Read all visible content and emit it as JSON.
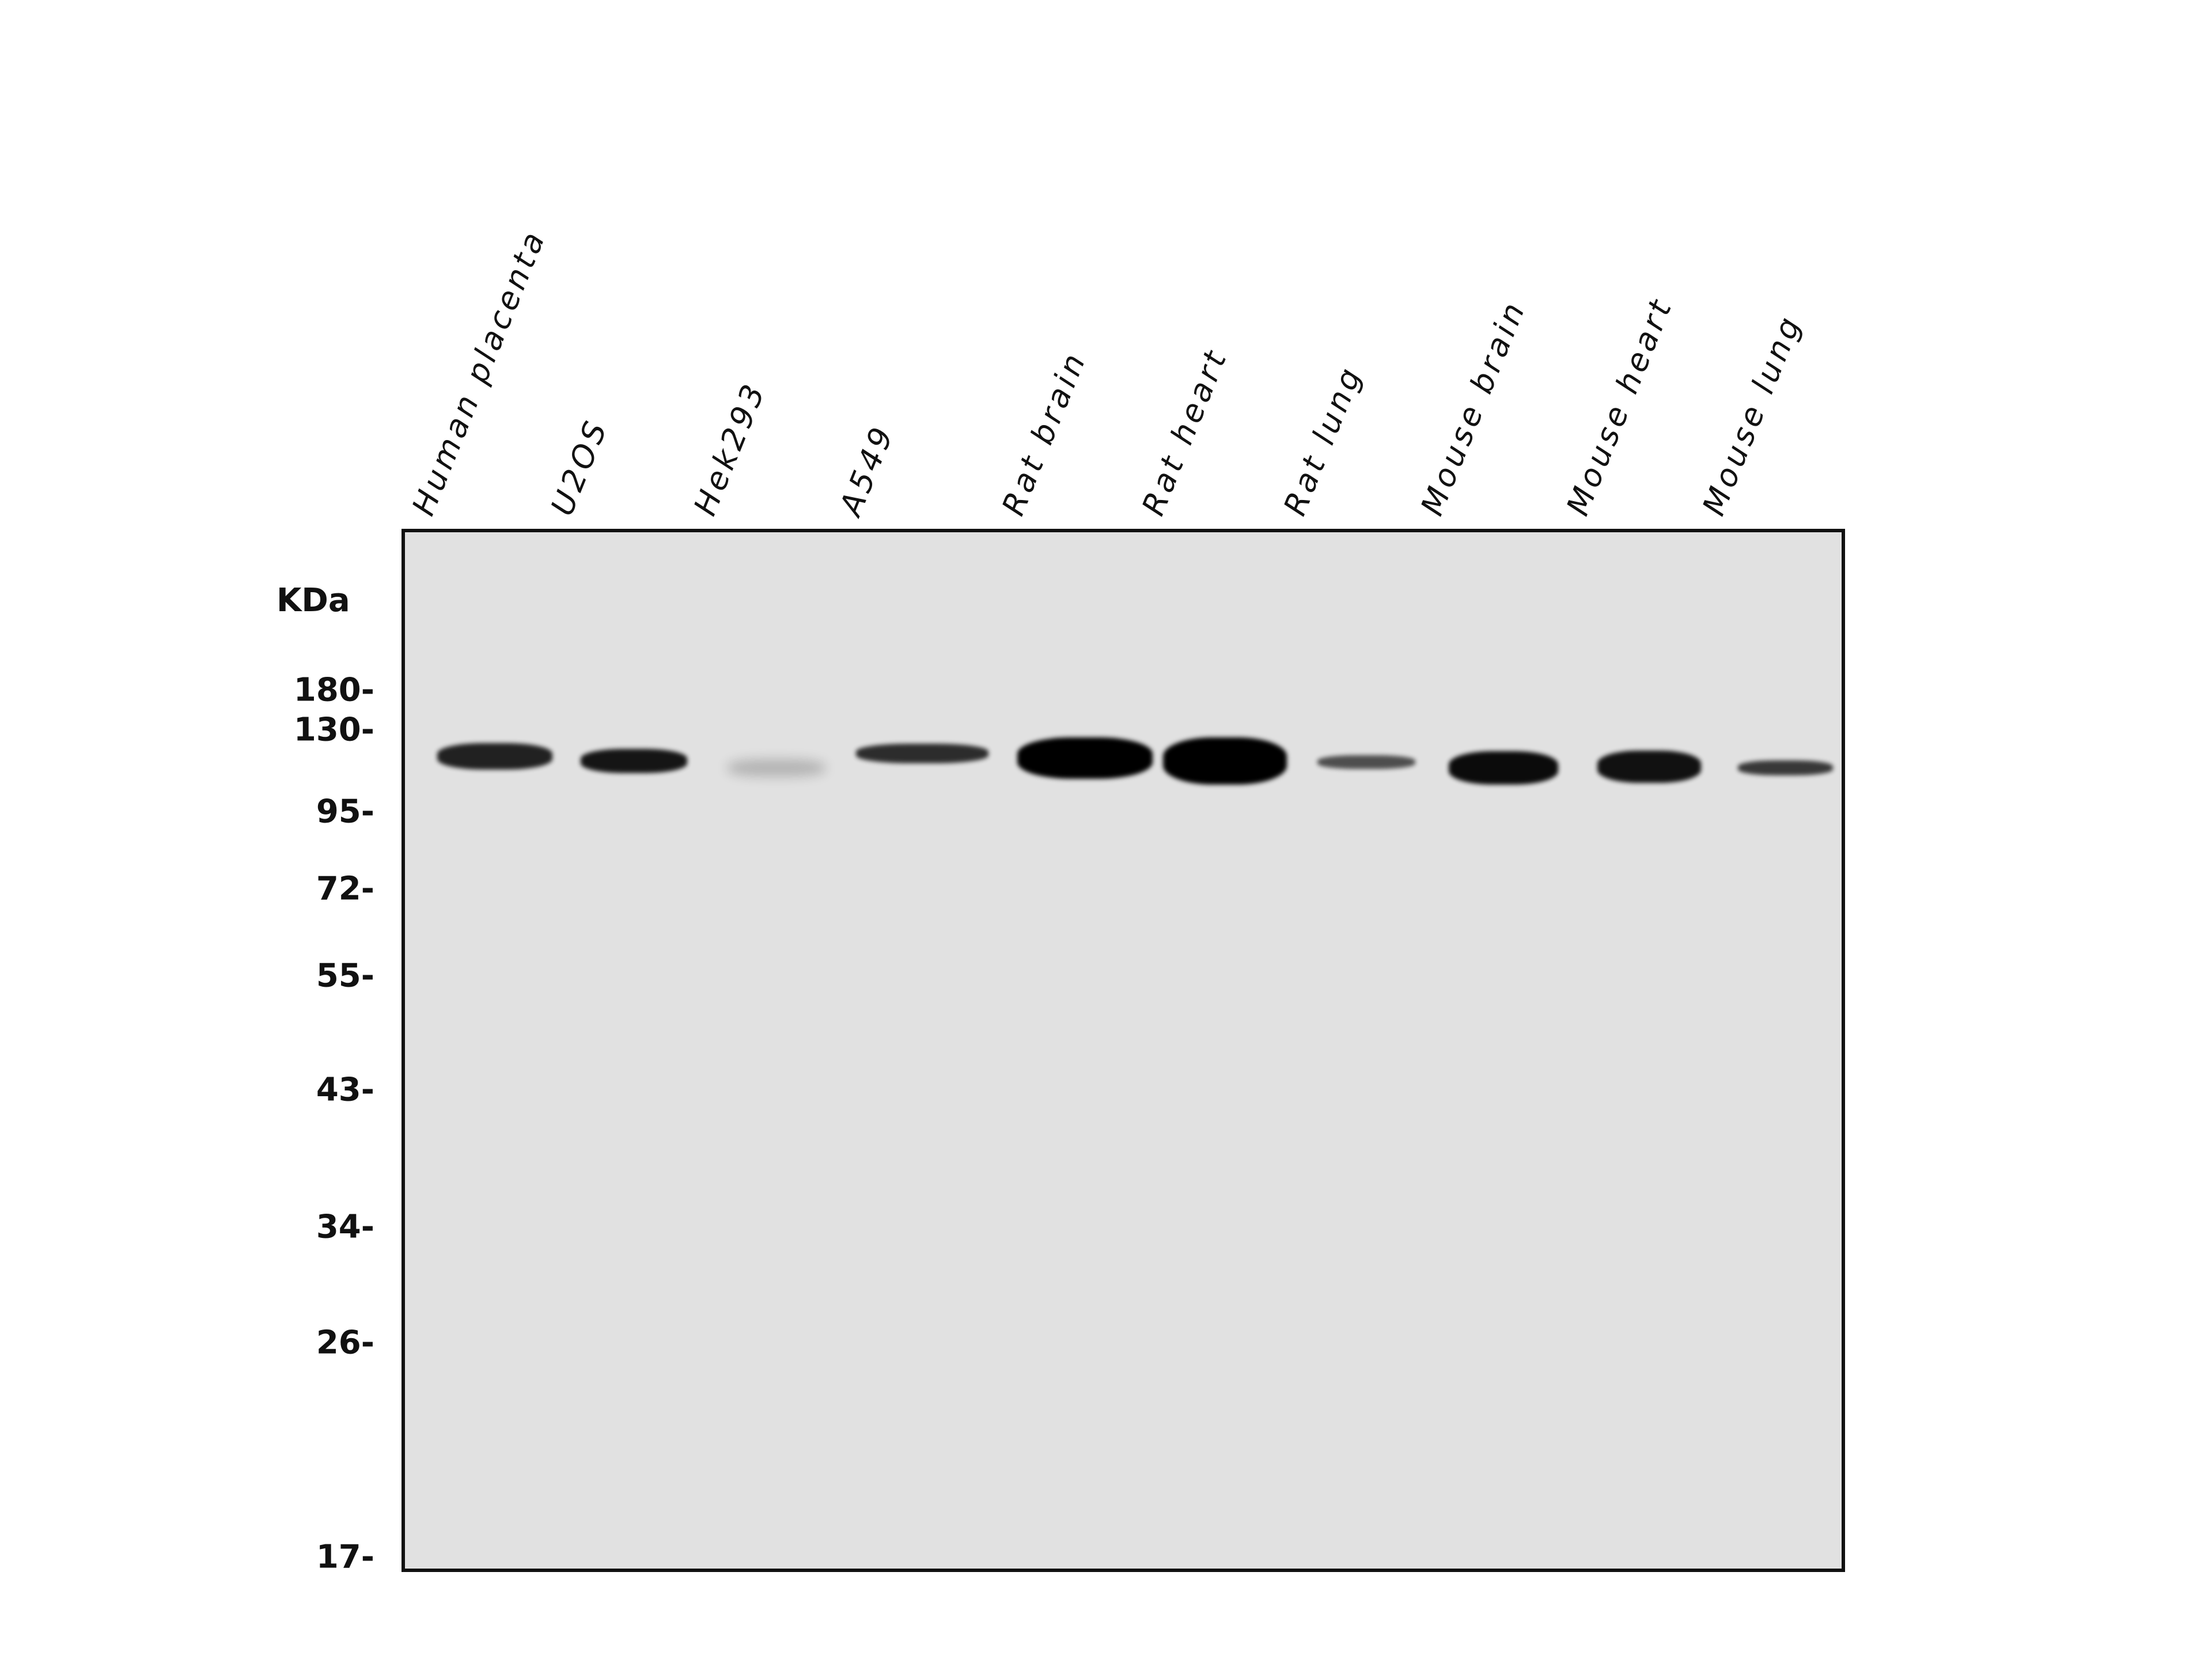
{
  "lanes": [
    "Human placenta",
    "U2OS",
    "Hek293",
    "A549",
    "Rat brain",
    "Rat heart",
    "Rat lung",
    "Mouse brain",
    "Mouse heart",
    "Mouse lung"
  ],
  "unit_label": "KDa",
  "markers": [
    "180-",
    "130-",
    "95-",
    "72-",
    "55-",
    "43-",
    "34-",
    "26-",
    "17-"
  ],
  "band_intensity": [
    0.85,
    0.9,
    0.2,
    0.8,
    1.0,
    1.0,
    0.65,
    0.95,
    0.92,
    0.75
  ]
}
